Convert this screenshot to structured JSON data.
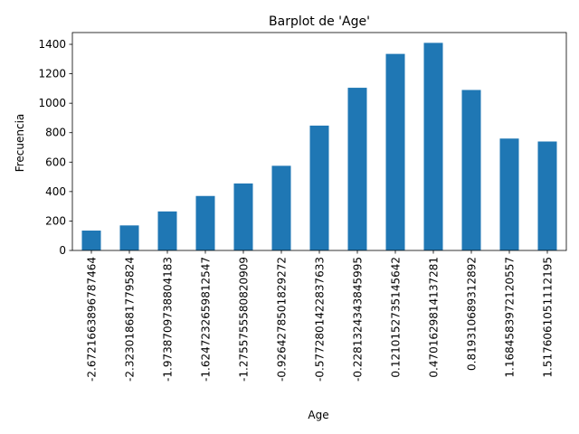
{
  "chart_data": {
    "type": "bar",
    "title": "Barplot de 'Age'",
    "xlabel": "Age",
    "ylabel": "Frecuencia",
    "categories": [
      "-2.6721663896787464",
      "-2.3230186817795824",
      "-1.9738709738804183",
      "-1.6247232659812547",
      "-1.2755755580820909",
      "-0.9264278501829272",
      "-0.5772801422837633",
      "-0.2281324343845995",
      "0.1210152735145642",
      "0.4701629814137281",
      "0.819310689312892",
      "1.1684583972120557",
      "1.5176061051112195"
    ],
    "values": [
      135,
      170,
      265,
      370,
      455,
      575,
      848,
      1105,
      1335,
      1410,
      1090,
      760,
      740
    ],
    "yticks": [
      0,
      200,
      400,
      600,
      800,
      1000,
      1200,
      1400
    ],
    "ylim": [
      0,
      1480
    ],
    "bar_color": "#1f77b4",
    "grid": false,
    "legend": "none"
  }
}
